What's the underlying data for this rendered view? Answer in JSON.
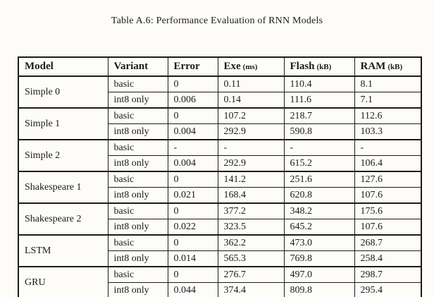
{
  "page": {
    "caption": "Table A.6: Performance Evaluation of RNN Models"
  },
  "colors": {
    "text": "#1b1b1b",
    "border": "#1b1b1b",
    "background": "#fdfcf9"
  },
  "table": {
    "columns": [
      {
        "label": "Model",
        "unit": ""
      },
      {
        "label": "Variant",
        "unit": ""
      },
      {
        "label": "Error",
        "unit": ""
      },
      {
        "label": "Exe",
        "unit": "(ms)"
      },
      {
        "label": "Flash",
        "unit": "(kB)"
      },
      {
        "label": "RAM",
        "unit": "(kB)"
      }
    ],
    "groups": [
      {
        "model": "Simple 0",
        "rows": [
          {
            "variant": "basic",
            "error": "0",
            "exe": "0.11",
            "flash": "110.4",
            "ram": "8.1"
          },
          {
            "variant": "int8 only",
            "error": "0.006",
            "exe": "0.14",
            "flash": "111.6",
            "ram": "7.1"
          }
        ]
      },
      {
        "model": "Simple 1",
        "rows": [
          {
            "variant": "basic",
            "error": "0",
            "exe": "107.2",
            "flash": "218.7",
            "ram": "112.6"
          },
          {
            "variant": "int8 only",
            "error": "0.004",
            "exe": "292.9",
            "flash": "590.8",
            "ram": "103.3"
          }
        ]
      },
      {
        "model": "Simple 2",
        "rows": [
          {
            "variant": "basic",
            "error": "-",
            "exe": "-",
            "flash": "-",
            "ram": "-"
          },
          {
            "variant": "int8 only",
            "error": "0.004",
            "exe": "292.9",
            "flash": "615.2",
            "ram": "106.4"
          }
        ]
      },
      {
        "model": "Shakespeare 1",
        "rows": [
          {
            "variant": "basic",
            "error": "0",
            "exe": "141.2",
            "flash": "251.6",
            "ram": "127.6"
          },
          {
            "variant": "int8 only",
            "error": "0.021",
            "exe": "168.4",
            "flash": "620.8",
            "ram": "107.6"
          }
        ]
      },
      {
        "model": "Shakespeare 2",
        "rows": [
          {
            "variant": "basic",
            "error": "0",
            "exe": "377.2",
            "flash": "348.2",
            "ram": "175.6"
          },
          {
            "variant": "int8 only",
            "error": "0.022",
            "exe": "323.5",
            "flash": "645.2",
            "ram": "107.6"
          }
        ]
      },
      {
        "model": "LSTM",
        "rows": [
          {
            "variant": "basic",
            "error": "0",
            "exe": "362.2",
            "flash": "473.0",
            "ram": "268.7"
          },
          {
            "variant": "int8 only",
            "error": "0.014",
            "exe": "565.3",
            "flash": "769.8",
            "ram": "258.4"
          }
        ]
      },
      {
        "model": "GRU",
        "rows": [
          {
            "variant": "basic",
            "error": "0",
            "exe": "276.7",
            "flash": "497.0",
            "ram": "298.7"
          },
          {
            "variant": "int8 only",
            "error": "0.044",
            "exe": "374.4",
            "flash": "809.8",
            "ram": "295.4"
          }
        ]
      }
    ]
  }
}
